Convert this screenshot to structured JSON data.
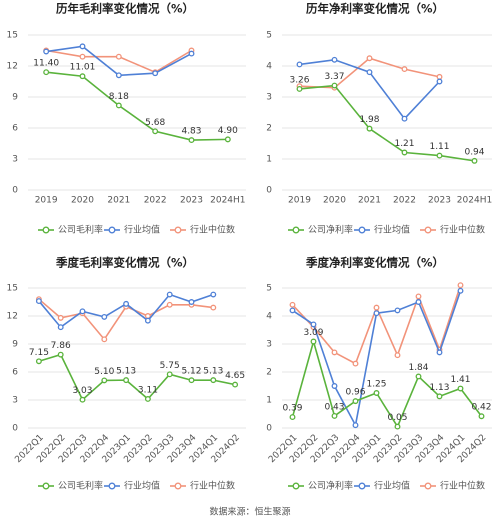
{
  "chart_data": [
    {
      "type": "line",
      "title": "历年毛利率变化情况（%）",
      "categories": [
        "2019",
        "2020",
        "2021",
        "2022",
        "2023",
        "2024H1"
      ],
      "ylim": [
        0,
        15
      ],
      "yticks": [
        0,
        3,
        6,
        9,
        12,
        15
      ],
      "grid": true,
      "legend": "bottom",
      "series": [
        {
          "name": "公司毛利率",
          "color": "#5ab33c",
          "values": [
            11.4,
            11.01,
            8.18,
            5.68,
            4.83,
            4.9
          ],
          "value_labels": [
            "11.40",
            "11.01",
            "8.18",
            "5.68",
            "4.83",
            "4.90"
          ]
        },
        {
          "name": "行业均值",
          "color": "#4f80d6",
          "values": [
            13.4,
            13.9,
            11.1,
            11.3,
            13.2,
            null
          ]
        },
        {
          "name": "行业中位数",
          "color": "#f2937a",
          "values": [
            13.5,
            12.9,
            12.9,
            11.4,
            13.5,
            null
          ]
        }
      ]
    },
    {
      "type": "line",
      "title": "历年净利率变化情况（%）",
      "categories": [
        "2019",
        "2020",
        "2021",
        "2022",
        "2023",
        "2024H1"
      ],
      "ylim": [
        0,
        5
      ],
      "yticks": [
        0,
        1,
        2,
        3,
        4,
        5
      ],
      "grid": true,
      "legend": "bottom",
      "series": [
        {
          "name": "公司净利率",
          "color": "#5ab33c",
          "values": [
            3.26,
            3.37,
            1.98,
            1.21,
            1.11,
            0.94
          ]
        },
        {
          "name": "行业均值",
          "color": "#4f80d6",
          "values": [
            4.05,
            4.2,
            3.8,
            2.3,
            3.5,
            null
          ]
        },
        {
          "name": "行业中位数",
          "color": "#f2937a",
          "values": [
            3.35,
            3.3,
            4.25,
            3.9,
            3.65,
            null
          ]
        }
      ]
    },
    {
      "type": "line",
      "title": "季度毛利率变化情况（%）",
      "categories": [
        "2022Q1",
        "2022Q2",
        "2022Q3",
        "2022Q4",
        "2023Q1",
        "2023Q2",
        "2023Q3",
        "2023Q4",
        "2024Q1",
        "2024Q2"
      ],
      "ylim": [
        0,
        15
      ],
      "yticks": [
        0,
        3,
        6,
        9,
        12,
        15
      ],
      "grid": true,
      "legend": "bottom",
      "series": [
        {
          "name": "公司毛利率",
          "color": "#5ab33c",
          "values": [
            7.15,
            7.86,
            3.03,
            5.1,
            5.13,
            3.11,
            5.75,
            5.12,
            5.13,
            4.65
          ],
          "value_labels": [
            "7.15",
            "7.86",
            "3.03",
            "5.10",
            "5.13",
            "3.11",
            "5.75",
            "5.12",
            "5.13",
            "4.65"
          ]
        },
        {
          "name": "行业均值",
          "color": "#4f80d6",
          "values": [
            13.6,
            10.8,
            12.5,
            11.9,
            13.3,
            11.5,
            14.3,
            13.5,
            14.3,
            null
          ]
        },
        {
          "name": "行业中位数",
          "color": "#f2937a",
          "values": [
            13.8,
            11.8,
            12.3,
            9.5,
            13.0,
            12.0,
            13.2,
            13.2,
            12.9,
            null
          ]
        }
      ]
    },
    {
      "type": "line",
      "title": "季度净利率变化情况（%）",
      "categories": [
        "2022Q1",
        "2022Q2",
        "2022Q3",
        "2022Q4",
        "2023Q1",
        "2023Q2",
        "2023Q3",
        "2023Q4",
        "2024Q1",
        "2024Q2"
      ],
      "ylim": [
        0,
        5
      ],
      "yticks": [
        0,
        1,
        2,
        3,
        4,
        5
      ],
      "grid": true,
      "legend": "bottom",
      "series": [
        {
          "name": "公司净利率",
          "color": "#5ab33c",
          "values": [
            0.39,
            3.09,
            0.43,
            0.96,
            1.25,
            0.05,
            1.84,
            1.13,
            1.41,
            0.42
          ]
        },
        {
          "name": "行业均值",
          "color": "#4f80d6",
          "values": [
            4.2,
            3.7,
            1.5,
            0.1,
            4.1,
            4.2,
            4.5,
            2.7,
            4.9,
            null
          ]
        },
        {
          "name": "行业中位数",
          "color": "#f2937a",
          "values": [
            4.4,
            3.6,
            2.7,
            2.3,
            4.3,
            2.6,
            4.7,
            2.8,
            5.1,
            null
          ]
        }
      ]
    }
  ],
  "source": "数据来源：恒生聚源"
}
